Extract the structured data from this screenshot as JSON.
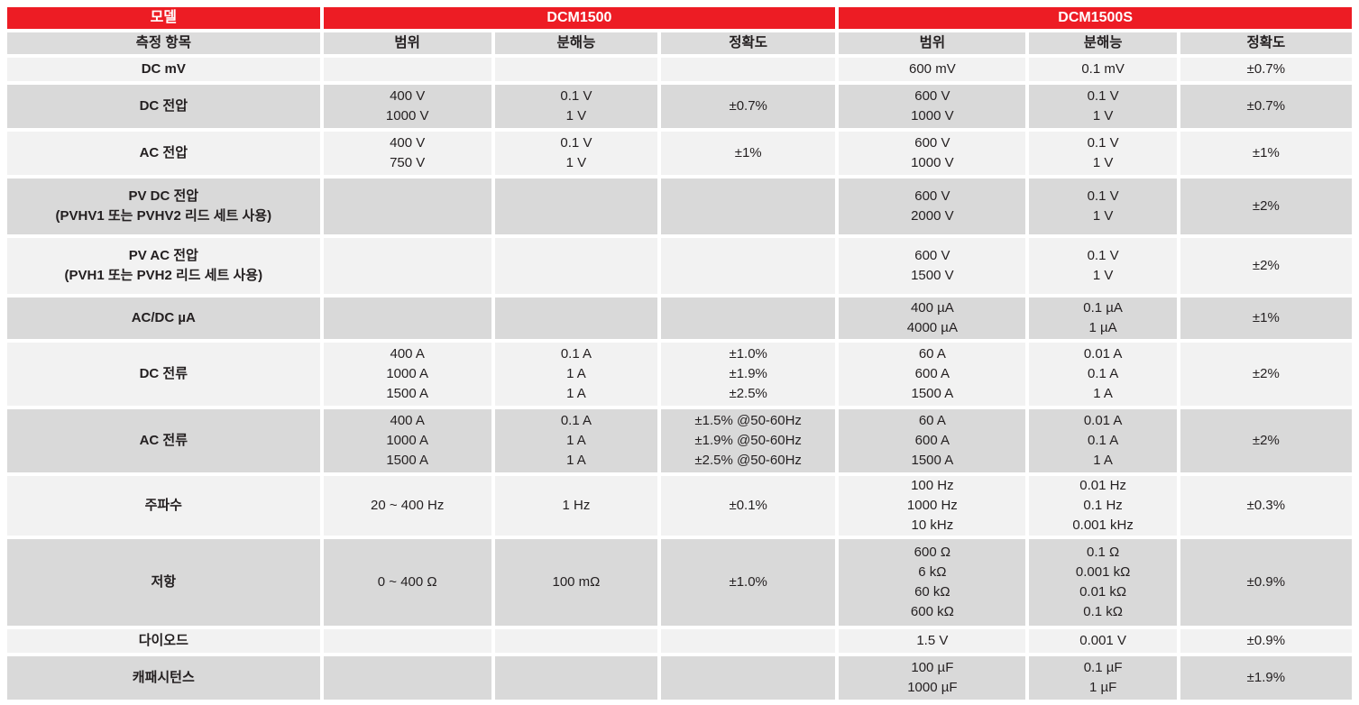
{
  "table": {
    "header": {
      "model_label": "모델",
      "model1": "DCM1500",
      "model2": "DCM1500S"
    },
    "subheader": {
      "item": "측정 항목",
      "range": "범위",
      "resolution": "분해능",
      "accuracy": "정확도"
    },
    "colors": {
      "accent_red": "#ed1c24",
      "subheader_bg": "#dcdcdc",
      "row_light": "#f2f2f2",
      "row_dark": "#d9d9d9",
      "text": "#231f20"
    },
    "rows": [
      {
        "item": "DC mV",
        "m1_range": "",
        "m1_res": "",
        "m1_acc": "",
        "m2_range": "600 mV",
        "m2_res": "0.1 mV",
        "m2_acc": "±0.7%"
      },
      {
        "item": "DC 전압",
        "m1_range": "400 V\n1000 V",
        "m1_res": "0.1 V\n1 V",
        "m1_acc": "±0.7%",
        "m2_range": "600 V\n1000 V",
        "m2_res": "0.1 V\n1 V",
        "m2_acc": "±0.7%"
      },
      {
        "item": "AC 전압",
        "m1_range": "400 V\n750 V",
        "m1_res": "0.1 V\n1 V",
        "m1_acc": "±1%",
        "m2_range": "600 V\n1000 V",
        "m2_res": "0.1 V\n1 V",
        "m2_acc": "±1%"
      },
      {
        "item": "PV DC 전압\n(PVHV1 또는 PVHV2 리드 세트 사용)",
        "m1_range": "",
        "m1_res": "",
        "m1_acc": "",
        "m2_range": "600 V\n2000 V",
        "m2_res": "0.1 V\n1 V",
        "m2_acc": "±2%"
      },
      {
        "item": "PV AC 전압\n(PVH1 또는 PVH2 리드 세트 사용)",
        "m1_range": "",
        "m1_res": "",
        "m1_acc": "",
        "m2_range": "600 V\n1500 V",
        "m2_res": "0.1 V\n1 V",
        "m2_acc": "±2%"
      },
      {
        "item": "AC/DC µA",
        "m1_range": "",
        "m1_res": "",
        "m1_acc": "",
        "m2_range": "400 µA\n4000 µA",
        "m2_res": "0.1 µA\n1 µA",
        "m2_acc": "±1%"
      },
      {
        "item": "DC 전류",
        "m1_range": "400 A\n1000 A\n1500 A",
        "m1_res": "0.1 A\n1 A\n1 A",
        "m1_acc": "±1.0%\n±1.9%\n±2.5%",
        "m2_range": "60 A\n600 A\n1500 A",
        "m2_res": "0.01 A\n0.1 A\n1 A",
        "m2_acc": "±2%"
      },
      {
        "item": "AC 전류",
        "m1_range": "400 A\n1000 A\n1500 A",
        "m1_res": "0.1 A\n1 A\n1 A",
        "m1_acc": "±1.5% @50-60Hz\n±1.9% @50-60Hz\n±2.5% @50-60Hz",
        "m2_range": "60 A\n600 A\n1500 A",
        "m2_res": "0.01 A\n0.1 A\n1 A",
        "m2_acc": "±2%"
      },
      {
        "item": "주파수",
        "m1_range": "20 ~ 400 Hz",
        "m1_res": "1 Hz",
        "m1_acc": "±0.1%",
        "m2_range": "100 Hz\n1000 Hz\n10 kHz",
        "m2_res": "0.01 Hz\n0.1 Hz\n0.001 kHz",
        "m2_acc": "±0.3%"
      },
      {
        "item": "저항",
        "m1_range": "0 ~ 400 Ω",
        "m1_res": "100 mΩ",
        "m1_acc": "±1.0%",
        "m2_range": "600 Ω\n6 kΩ\n60 kΩ\n600 kΩ",
        "m2_res": "0.1 Ω\n0.001 kΩ\n0.01 kΩ\n0.1 kΩ",
        "m2_acc": "±0.9%"
      },
      {
        "item": "다이오드",
        "m1_range": "",
        "m1_res": "",
        "m1_acc": "",
        "m2_range": "1.5 V",
        "m2_res": "0.001 V",
        "m2_acc": "±0.9%"
      },
      {
        "item": "캐패시턴스",
        "m1_range": "",
        "m1_res": "",
        "m1_acc": "",
        "m2_range": "100 µF\n1000 µF",
        "m2_res": "0.1 µF\n1 µF",
        "m2_acc": "±1.9%"
      }
    ]
  }
}
